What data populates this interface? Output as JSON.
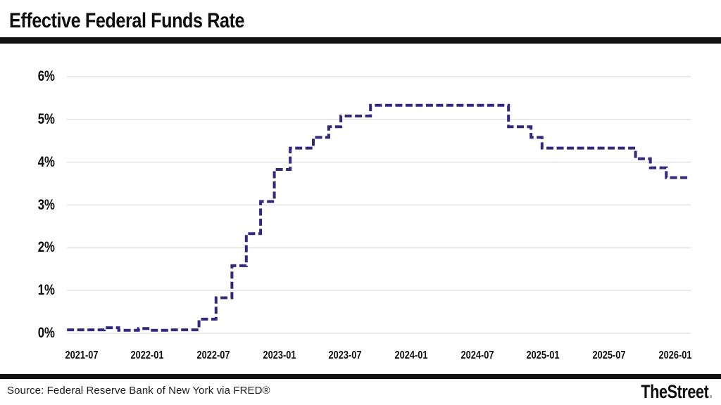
{
  "header": {
    "title": "Effective Federal Funds Rate"
  },
  "footer": {
    "source": "Source: Federal Reserve Bank of New York via FRED®",
    "brand": "TheStreet",
    "brand_dot": "."
  },
  "chart_data": {
    "type": "line",
    "step": true,
    "dashed": true,
    "title": "Effective Federal Funds Rate",
    "xlabel": "",
    "ylabel": "",
    "ylim": [
      0,
      6
    ],
    "grid": true,
    "legend": "none",
    "colors": {
      "line": "#32287c",
      "grid": "#e4e4e4",
      "text": "#0e0e0e",
      "divider_bar": "#121212"
    },
    "y_ticks": [
      {
        "label": "0%",
        "value": 0
      },
      {
        "label": "1%",
        "value": 1
      },
      {
        "label": "2%",
        "value": 2
      },
      {
        "label": "3%",
        "value": 3
      },
      {
        "label": "4%",
        "value": 4
      },
      {
        "label": "5%",
        "value": 5
      },
      {
        "label": "6%",
        "value": 6
      }
    ],
    "x_ticks": [
      {
        "label": "2021-07",
        "m": 0
      },
      {
        "label": "2022-01",
        "m": 6
      },
      {
        "label": "2022-07",
        "m": 12
      },
      {
        "label": "2023-01",
        "m": 18
      },
      {
        "label": "2023-07",
        "m": 24
      },
      {
        "label": "2024-01",
        "m": 30
      },
      {
        "label": "2024-07",
        "m": 36
      },
      {
        "label": "2025-01",
        "m": 42
      },
      {
        "label": "2025-07",
        "m": 48
      },
      {
        "label": "2026-01",
        "m": 54
      }
    ],
    "points": [
      {
        "date": "2021-06",
        "m": -1.3,
        "value": 0.08
      },
      {
        "date": "2021-09",
        "m": 2.1,
        "value": 0.13
      },
      {
        "date": "2021-10",
        "m": 3.4,
        "value": 0.07
      },
      {
        "date": "2021-12",
        "m": 5.2,
        "value": 0.11
      },
      {
        "date": "2022-01",
        "m": 6.3,
        "value": 0.07
      },
      {
        "date": "2022-03",
        "m": 8.0,
        "value": 0.08
      },
      {
        "date": "2022-06",
        "m": 10.7,
        "value": 0.33
      },
      {
        "date": "2022-07",
        "m": 12.25,
        "value": 0.83
      },
      {
        "date": "2022-09",
        "m": 13.7,
        "value": 1.58
      },
      {
        "date": "2022-10",
        "m": 15.0,
        "value": 2.33
      },
      {
        "date": "2022-11",
        "m": 16.3,
        "value": 3.08
      },
      {
        "date": "2022-12",
        "m": 17.55,
        "value": 3.83
      },
      {
        "date": "2023-02",
        "m": 19.0,
        "value": 4.33
      },
      {
        "date": "2023-04",
        "m": 21.1,
        "value": 4.58
      },
      {
        "date": "2023-05",
        "m": 22.5,
        "value": 4.83
      },
      {
        "date": "2023-07",
        "m": 23.6,
        "value": 5.08
      },
      {
        "date": "2023-09",
        "m": 26.3,
        "value": 5.33
      },
      {
        "date": "2024-10",
        "m": 38.85,
        "value": 4.83
      },
      {
        "date": "2024-12",
        "m": 40.9,
        "value": 4.58
      },
      {
        "date": "2025-01",
        "m": 41.9,
        "value": 4.33
      },
      {
        "date": "2025-09",
        "m": 50.4,
        "value": 4.08
      },
      {
        "date": "2025-11",
        "m": 51.75,
        "value": 3.87
      },
      {
        "date": "2025-12",
        "m": 53.2,
        "value": 3.64
      },
      {
        "date": "2026-02",
        "m": 55.2,
        "value": 3.64
      }
    ]
  }
}
